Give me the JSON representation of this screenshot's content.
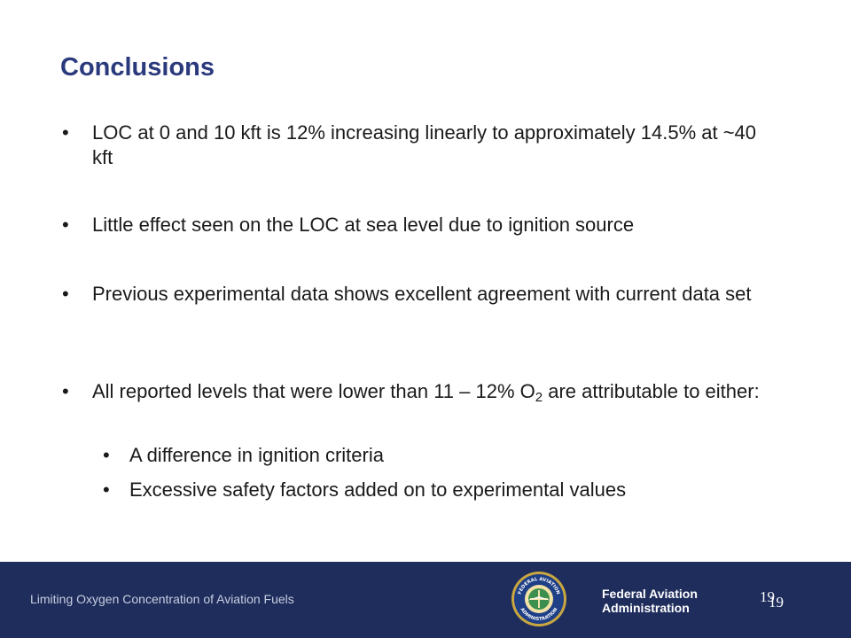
{
  "slide": {
    "title": "Conclusions",
    "bullets": [
      {
        "text": "LOC at 0 and 10 kft is 12% increasing linearly to approximately 14.5% at ~40 kft"
      },
      {
        "text": "Little effect seen on the LOC at sea level due to ignition source"
      },
      {
        "text": "Previous experimental data shows excellent agreement with current data set"
      },
      {
        "text_before": "All reported levels that were lower than 11 – 12% O",
        "subscript": "2",
        "text_after": " are attributable to either:"
      }
    ],
    "sub_bullets": [
      {
        "text": "A difference in ignition criteria"
      },
      {
        "text": "Excessive safety factors added on to experimental values"
      }
    ],
    "bullet_glyph": "•"
  },
  "footer": {
    "caption": "Limiting Oxygen Concentration of Aviation Fuels",
    "agency_line1": "Federal Aviation",
    "agency_line2": "Administration",
    "page_number_1": "19",
    "page_number_2": "19",
    "seal_text_top": "FEDERAL AVIATION",
    "seal_text_bottom": "ADMINISTRATION",
    "colors": {
      "footer_bg": "#1e2d5c",
      "title": "#2a3a7c"
    }
  }
}
